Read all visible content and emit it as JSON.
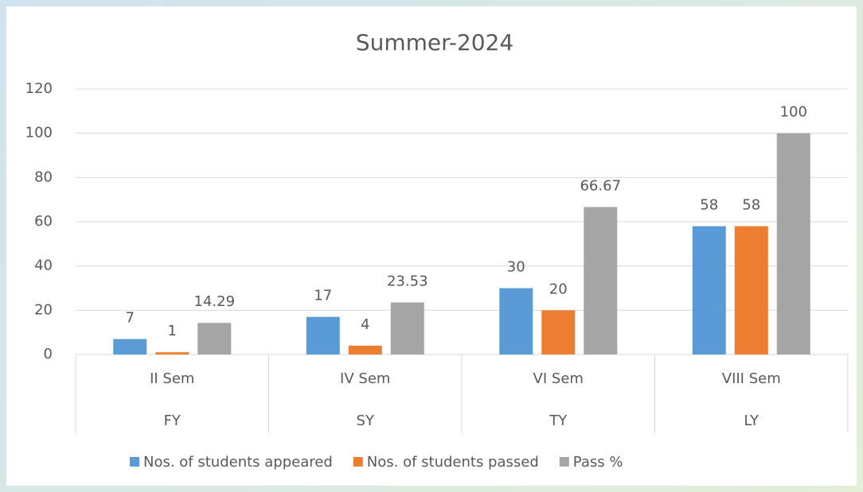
{
  "chart_data": {
    "type": "bar",
    "title": "Summer-2024",
    "categories": [
      "II Sem",
      "IV Sem",
      "VI Sem",
      "VIII Sem"
    ],
    "category_groups": [
      "FY",
      "SY",
      "TY",
      "LY"
    ],
    "series": [
      {
        "name": "Nos. of students appeared",
        "color": "#5b9bd5",
        "values": [
          7,
          17,
          30,
          58
        ]
      },
      {
        "name": "Nos. of students passed",
        "color": "#ed7d31",
        "values": [
          1,
          4,
          20,
          58
        ]
      },
      {
        "name": "Pass %",
        "color": "#a5a5a5",
        "values": [
          14.29,
          23.53,
          66.67,
          100
        ]
      }
    ],
    "ylim": [
      0,
      120
    ],
    "yticks": [
      0,
      20,
      40,
      60,
      80,
      100,
      120
    ],
    "grid": true,
    "legend": "bottom"
  }
}
